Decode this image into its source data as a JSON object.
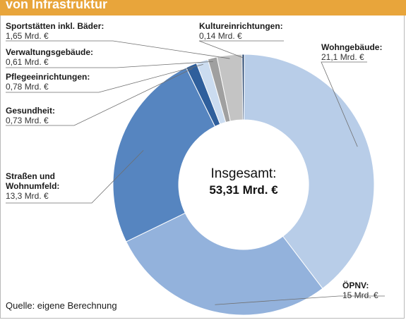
{
  "header": {
    "title": "von Infrastruktur"
  },
  "center": {
    "title": "Insgesamt:",
    "value": "53,31 Mrd. €"
  },
  "source": "Quelle: eigene Berechnung",
  "chart_data": {
    "type": "pie",
    "title": "von Infrastruktur",
    "total_label": "53,31 Mrd. €",
    "slices": [
      {
        "name": "Wohngebäude",
        "label": "Wohngebäude:",
        "value": 21.1,
        "value_label": "21,1 Mrd. €",
        "color": "#b8cde8"
      },
      {
        "name": "ÖPNV",
        "label": "ÖPNV:",
        "value": 15,
        "value_label": "15 Mrd. €",
        "color": "#93b2dc"
      },
      {
        "name": "Straßen und Wohnumfeld",
        "label": "Straßen und Wohnumfeld:",
        "value": 13.3,
        "value_label": "13,3 Mrd. €",
        "color": "#5685c0"
      },
      {
        "name": "Gesundheit",
        "label": "Gesundheit:",
        "value": 0.73,
        "value_label": "0,73 Mrd. €",
        "color": "#2f5f9c"
      },
      {
        "name": "Pflegeeinrichtungen",
        "label": "Pflegeeinrichtungen:",
        "value": 0.78,
        "value_label": "0,78 Mrd. €",
        "color": "#cbdcf0"
      },
      {
        "name": "Verwaltungsgebäude",
        "label": "Verwaltungsgebäude:",
        "value": 0.61,
        "value_label": "0,61 Mrd. €",
        "color": "#a0a0a0"
      },
      {
        "name": "Sportstätten inkl. Bäder",
        "label": "Sportstätten inkl. Bäder:",
        "value": 1.65,
        "value_label": "1,65 Mrd. €",
        "color": "#c4c4c4"
      },
      {
        "name": "Kultureinrichtungen",
        "label": "Kultureinrichtungen:",
        "value": 0.14,
        "value_label": "0,14 Mrd. €",
        "color": "#1f3f6b"
      }
    ]
  }
}
